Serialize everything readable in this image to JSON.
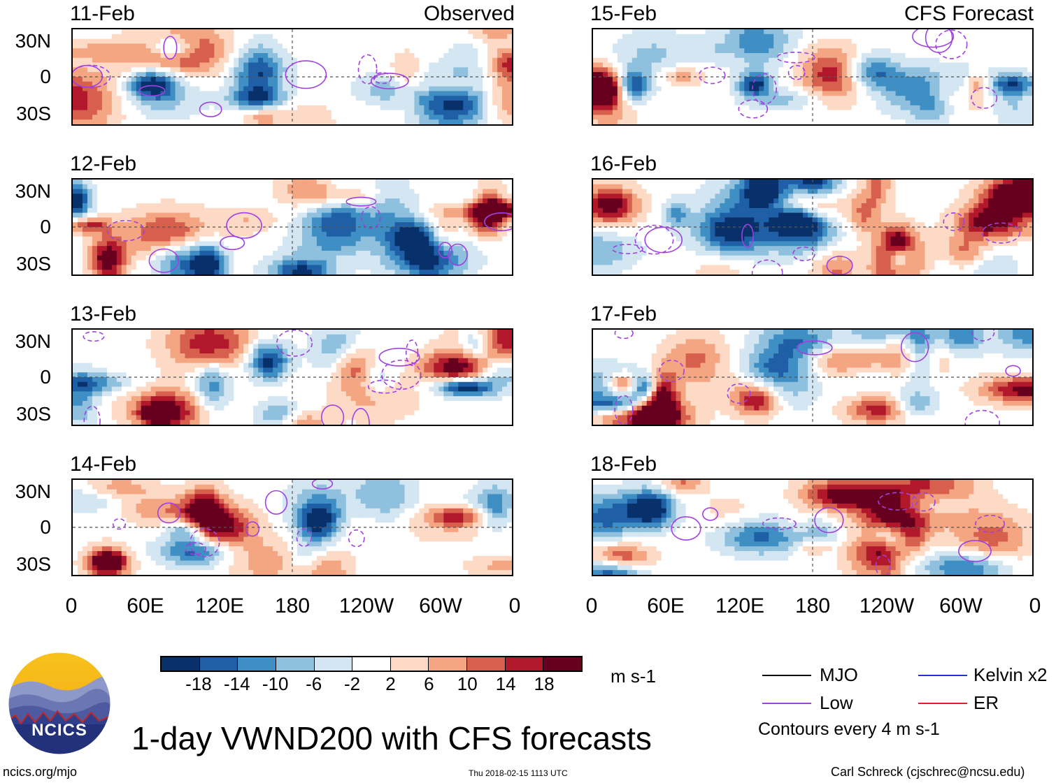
{
  "title": "1-day VWND200 with CFS forecasts",
  "columns": {
    "observed": {
      "label": "Observed",
      "dates": [
        "11-Feb",
        "12-Feb",
        "13-Feb",
        "14-Feb"
      ]
    },
    "forecast": {
      "label": "CFS Forecast",
      "dates": [
        "15-Feb",
        "16-Feb",
        "17-Feb",
        "18-Feb"
      ]
    }
  },
  "lat_ticks": [
    "30N",
    "0",
    "30S"
  ],
  "lon_ticks": [
    "0",
    "60E",
    "120E",
    "180",
    "120W",
    "60W",
    "0"
  ],
  "colorbar": {
    "unit": "m s-1",
    "labels": [
      "-18",
      "-14",
      "-10",
      "-6",
      "-2",
      "2",
      "6",
      "10",
      "14",
      "18"
    ],
    "colors": [
      "#08306b",
      "#1f5fa6",
      "#3f8fc4",
      "#8fc1de",
      "#d3e6f2",
      "#ffffff",
      "#fddac6",
      "#f4a582",
      "#d6604d",
      "#b2182b",
      "#67001f"
    ]
  },
  "legend": {
    "items": [
      {
        "label": "MJO",
        "color": "#000000"
      },
      {
        "label": "Kelvin x2",
        "color": "#2233cc"
      },
      {
        "label": "Low",
        "color": "#a040e0"
      },
      {
        "label": "ER",
        "color": "#e02020"
      }
    ],
    "note": "Contours every 4 m s-1"
  },
  "logo": {
    "text": "NCICS"
  },
  "footer": {
    "url": "ncics.org/mjo",
    "timestamp": "Thu 2018-02-15 1113 UTC",
    "credit": "Carl Schreck (cjschrec@ncsu.edu)"
  }
}
